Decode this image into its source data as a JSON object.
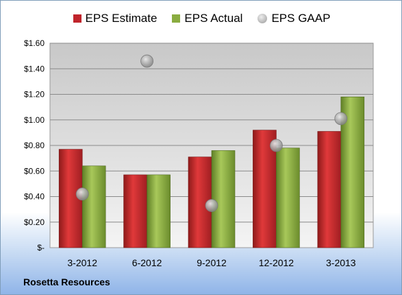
{
  "chart_data": {
    "type": "bar",
    "categories": [
      "3-2012",
      "6-2012",
      "9-2012",
      "12-2012",
      "3-2013"
    ],
    "series": [
      {
        "name": "EPS Estimate",
        "kind": "bar",
        "color": "#c0242b",
        "values": [
          0.77,
          0.57,
          0.71,
          0.92,
          0.91
        ]
      },
      {
        "name": "EPS Actual",
        "kind": "bar",
        "color": "#8aac40",
        "values": [
          0.64,
          0.57,
          0.76,
          0.78,
          1.18
        ]
      },
      {
        "name": "EPS GAAP",
        "kind": "scatter",
        "color": "#a9a9a9",
        "values": [
          0.42,
          1.46,
          0.33,
          0.8,
          1.01
        ]
      }
    ],
    "ylim": [
      0,
      1.6
    ],
    "yticks": [
      0,
      0.2,
      0.4,
      0.6,
      0.8,
      1.0,
      1.2,
      1.4,
      1.6
    ],
    "ytick_labels": [
      "$-",
      "$0.20",
      "$0.40",
      "$0.60",
      "$0.80",
      "$1.00",
      "$1.20",
      "$1.40",
      "$1.60"
    ],
    "grid": true,
    "legend_position": "top"
  },
  "footer": {
    "company": "Rosetta Resources"
  },
  "legend": [
    {
      "label": "EPS Estimate",
      "color": "#c0242b",
      "shape": "square"
    },
    {
      "label": "EPS Actual",
      "color": "#8aac40",
      "shape": "square"
    },
    {
      "label": "EPS GAAP",
      "color": "#a9a9a9",
      "shape": "circle"
    }
  ]
}
